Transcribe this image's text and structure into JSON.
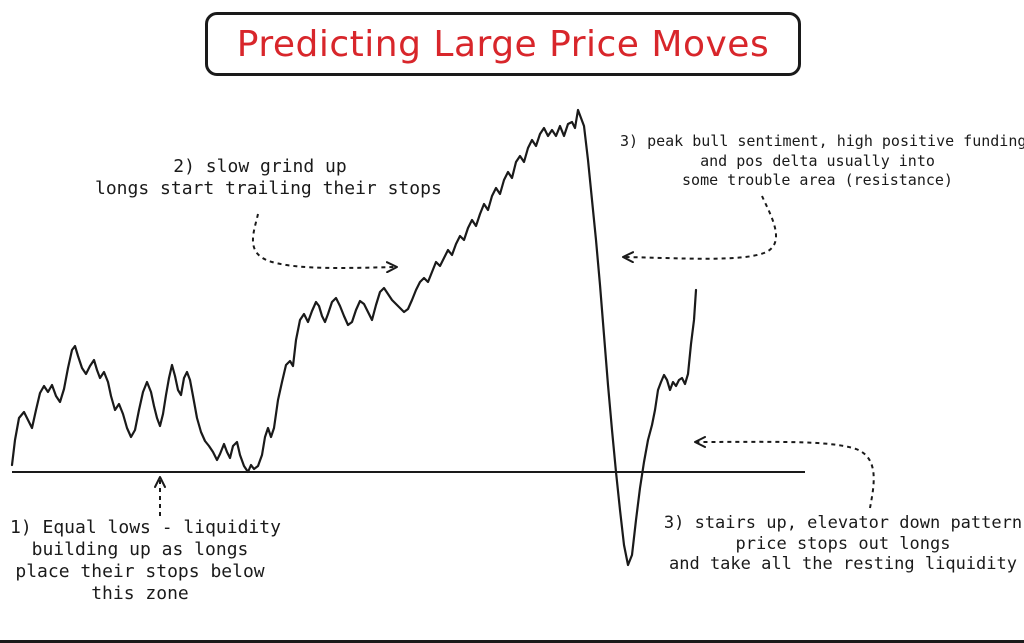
{
  "title": "Predicting Large Price Moves",
  "colors": {
    "title": "#d8262b",
    "ink": "#1a1a1a",
    "background": "#ffffff"
  },
  "annotations": {
    "equal_lows": [
      "1) Equal lows - liquidity",
      "building up as longs",
      "place their stops below",
      "this zone"
    ],
    "slow_grind": [
      "2) slow grind up",
      "longs start trailing their stops"
    ],
    "peak_sentiment": [
      "3) peak bull sentiment, high positive funding",
      "and pos delta usually into",
      "some trouble area (resistance)"
    ],
    "stairs_elevator": [
      "3) stairs up, elevator down pattern",
      "price stops out longs",
      "and take all the resting liquidity"
    ]
  }
}
